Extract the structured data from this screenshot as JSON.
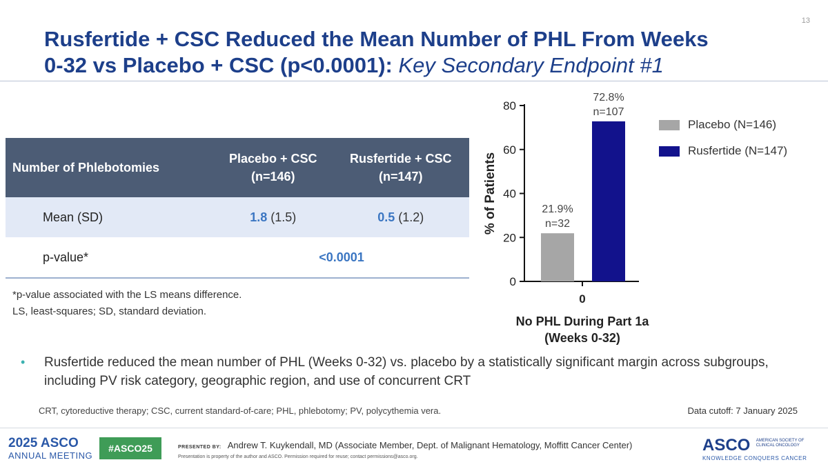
{
  "slide_number": "13",
  "title": {
    "main_line1": "Rusfertide + CSC Reduced the Mean Number of PHL From Weeks",
    "main_line2": "0-32 vs Placebo + CSC (p<0.0001):",
    "italic": "Key Secondary Endpoint #1"
  },
  "table": {
    "header_label": "Number of Phlebotomies",
    "col1_line1": "Placebo + CSC",
    "col1_line2": "(n=146)",
    "col2_line1": "Rusfertide + CSC",
    "col2_line2": "(n=147)",
    "rows": [
      {
        "label": "Mean (SD)",
        "c1_mean": "1.8",
        "c1_sd": "(1.5)",
        "c2_mean": "0.5",
        "c2_sd": "(1.2)"
      },
      {
        "label": "p-value*",
        "value": "<0.0001"
      }
    ],
    "footnote_line1": "*p-value associated with the LS means difference.",
    "footnote_line2": "LS, least-squares; SD, standard deviation."
  },
  "chart_data": {
    "type": "bar",
    "categories": [
      "0"
    ],
    "series": [
      {
        "name": "Placebo (N=146)",
        "values": [
          21.9
        ],
        "label_pct": "21.9%",
        "label_n": "n=32",
        "color": "#a6a6a6"
      },
      {
        "name": "Rusfertide (N=147)",
        "values": [
          72.8
        ],
        "label_pct": "72.8%",
        "label_n": "n=107",
        "color": "#12128c"
      }
    ],
    "ylabel": "% of Patients",
    "xlabel_line1": "No PHL During Part 1a",
    "xlabel_line2": "(Weeks 0-32)",
    "ylim": [
      0,
      80
    ],
    "yticks": [
      0,
      20,
      40,
      60,
      80
    ],
    "legend_position": "right"
  },
  "bullet": "Rusfertide reduced the mean number of PHL (Weeks 0-32) vs. placebo by a statistically significant margin across subgroups, including PV risk category, geographic region, and use of concurrent CRT",
  "abbreviations": "CRT, cytoreductive therapy; CSC, current standard-of-care; PHL, phlebotomy; PV, polycythemia vera.",
  "data_cutoff": "Data cutoff: 7 January 2025",
  "footer": {
    "meeting_year_name": "2025 ASCO",
    "meeting_sub": "ANNUAL MEETING",
    "hashtag": "#ASCO25",
    "presented_by_label": "PRESENTED BY:",
    "presenter": "Andrew T. Kuykendall, MD (Associate Member, Dept. of Malignant Hematology, Moffitt Cancer Center)",
    "property_note": "Presentation is property of the author and ASCO. Permission required for reuse; contact permissions@asco.org.",
    "asco_logo": "ASCO",
    "society_line1": "AMERICAN SOCIETY OF",
    "society_line2": "CLINICAL ONCOLOGY",
    "tagline": "KNOWLEDGE CONQUERS CANCER"
  }
}
